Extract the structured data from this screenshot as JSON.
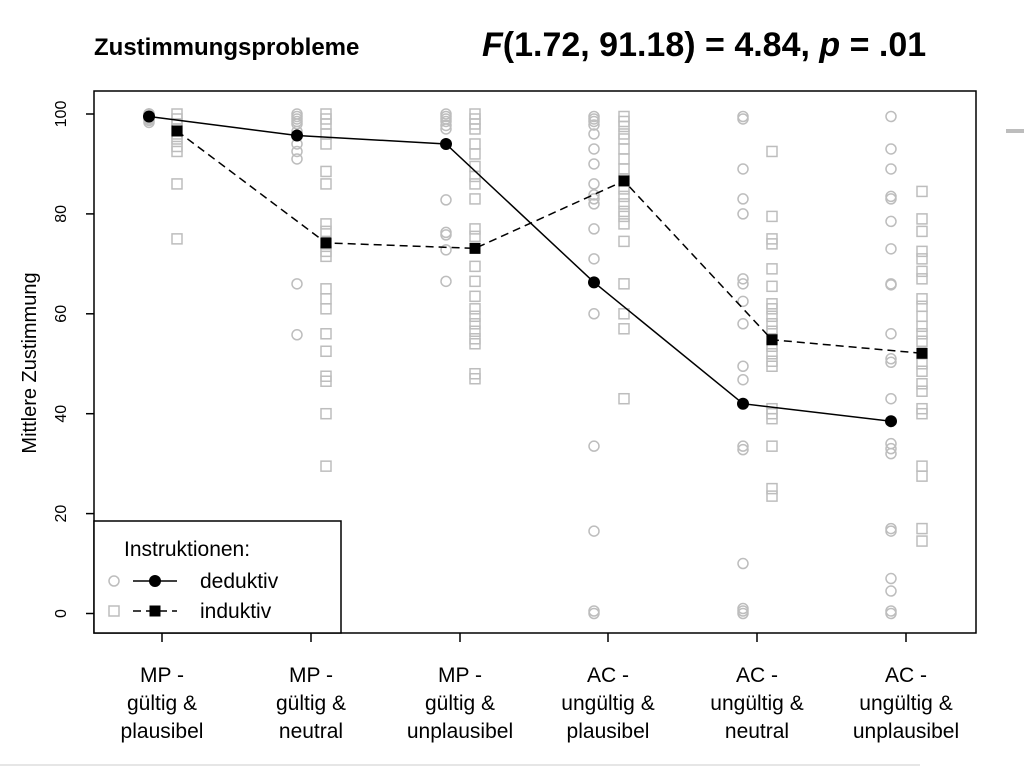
{
  "chart_data": {
    "type": "line",
    "title": "Zustimmungsprobleme",
    "stat": {
      "F": "F",
      "rest": "(1.72, 91.18) = 4.84, ",
      "p": "p",
      "tail": " = .01"
    },
    "ylabel": "Mittlere Zustimmung",
    "ylim": [
      0,
      100
    ],
    "yticks": [
      "0",
      "20",
      "40",
      "60",
      "80",
      "100"
    ],
    "categories": [
      [
        "MP -",
        "gültig &",
        "plausibel"
      ],
      [
        "MP -",
        "gültig &",
        "neutral"
      ],
      [
        "MP -",
        "gültig &",
        "unplausibel"
      ],
      [
        "AC -",
        "ungültig &",
        "plausibel"
      ],
      [
        "AC -",
        "ungültig &",
        "neutral"
      ],
      [
        "AC -",
        "ungültig &",
        "unplausibel"
      ]
    ],
    "legend": {
      "title": "Instruktionen:",
      "position": "bottom-left"
    },
    "series": [
      {
        "name": "deduktiv",
        "marker": "circle",
        "line": "solid",
        "values": [
          99.5,
          95.7,
          94.0,
          66.3,
          42.0,
          38.5
        ],
        "raw": [
          [
            100,
            100,
            100,
            100,
            99.6,
            99.3,
            99,
            98.7,
            98.3
          ],
          [
            100,
            99.5,
            99,
            98.5,
            98,
            96.5,
            94,
            92.5,
            91,
            66,
            55.8
          ],
          [
            100,
            99.5,
            99,
            98.5,
            97.7,
            97,
            82.8,
            76.3,
            75.8,
            72.8,
            66.5
          ],
          [
            99.5,
            99,
            98.5,
            97.8,
            96,
            93,
            90,
            86,
            83.8,
            83,
            82,
            77,
            71,
            60,
            33.5,
            16.5,
            0.5,
            0
          ],
          [
            99.5,
            99,
            89,
            83,
            80,
            67,
            66,
            62.5,
            58,
            49.5,
            46.8,
            33.5,
            32.8,
            10,
            1,
            0.5,
            0
          ],
          [
            99.5,
            93,
            89,
            83.5,
            83,
            78.5,
            73,
            66,
            65.8,
            56,
            51,
            50.3,
            43,
            34,
            33,
            32,
            17,
            16.5,
            7,
            4.5,
            0.5,
            0
          ]
        ]
      },
      {
        "name": "induktiv",
        "marker": "square",
        "line": "dashed",
        "values": [
          96.6,
          74.2,
          73.1,
          86.6,
          54.8,
          52.1
        ],
        "raw": [
          [
            100,
            99,
            98,
            97,
            96,
            95,
            93.5,
            92.5,
            86,
            75
          ],
          [
            100,
            99,
            98,
            96,
            94,
            88.5,
            86,
            78,
            76.5,
            74,
            72.5,
            71.5,
            65,
            63,
            61,
            56,
            52.5,
            47.5,
            46.5,
            40,
            29.5
          ],
          [
            100,
            99,
            98,
            97,
            94,
            92,
            89.5,
            87.5,
            86,
            83,
            77,
            75.5,
            69.5,
            66.5,
            63.5,
            61,
            59.5,
            58,
            56.5,
            55,
            54,
            48,
            47
          ],
          [
            99.5,
            98.5,
            97.5,
            96,
            95,
            93,
            91,
            89,
            87,
            85,
            83.5,
            82,
            80.5,
            79.5,
            78,
            74.5,
            66,
            60,
            57,
            43
          ],
          [
            92.5,
            79.5,
            75,
            74,
            69,
            65.5,
            62,
            61,
            59.5,
            58,
            56.5,
            55,
            53.5,
            52,
            50.5,
            49.5,
            41,
            40,
            39,
            33.5,
            25,
            23.5
          ],
          [
            84.5,
            79,
            76.5,
            72.5,
            71,
            68.5,
            67,
            63,
            61.5,
            59.5,
            57.5,
            56,
            54.5,
            52,
            50,
            48.5,
            46,
            44.5,
            41,
            40,
            29.5,
            27.5,
            17,
            14.5
          ]
        ]
      }
    ]
  }
}
